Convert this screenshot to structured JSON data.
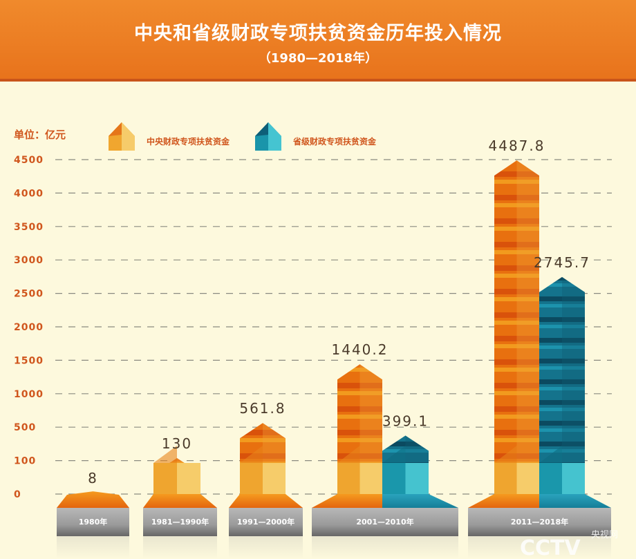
{
  "header": {
    "title": "中央和省级财政专项扶贫资金历年投入情况",
    "subtitle": "（1980—2018年）"
  },
  "watermark": {
    "logo": "CCTV.com",
    "text": "央视网"
  },
  "chart_data": {
    "type": "bar",
    "title": "中央和省级财政专项扶贫资金历年投入情况",
    "subtitle": "（1980—2018年）",
    "ylabel": "单位：亿元",
    "yticks": [
      0,
      100,
      500,
      1000,
      1500,
      2000,
      2500,
      3000,
      3500,
      4000,
      4500
    ],
    "ylim": [
      0,
      4500
    ],
    "grid": true,
    "legend_position": "top-left",
    "categories": [
      "1980年",
      "1981—1990年",
      "1991—2000年",
      "2001—2010年",
      "2011—2018年"
    ],
    "series": [
      {
        "name": "中央财政专项扶贫资金",
        "color": "#f0962a",
        "values": [
          8,
          130,
          561.8,
          1440.2,
          4487.8
        ]
      },
      {
        "name": "省级财政专项扶贫资金",
        "color": "#1b8fa6",
        "values": [
          null,
          null,
          null,
          399.1,
          2745.7
        ]
      }
    ],
    "value_labels": [
      [
        "8",
        "130",
        "561.8",
        "1440.2",
        "4487.8"
      ],
      [
        null,
        null,
        null,
        "399.1",
        "2745.7"
      ]
    ]
  }
}
